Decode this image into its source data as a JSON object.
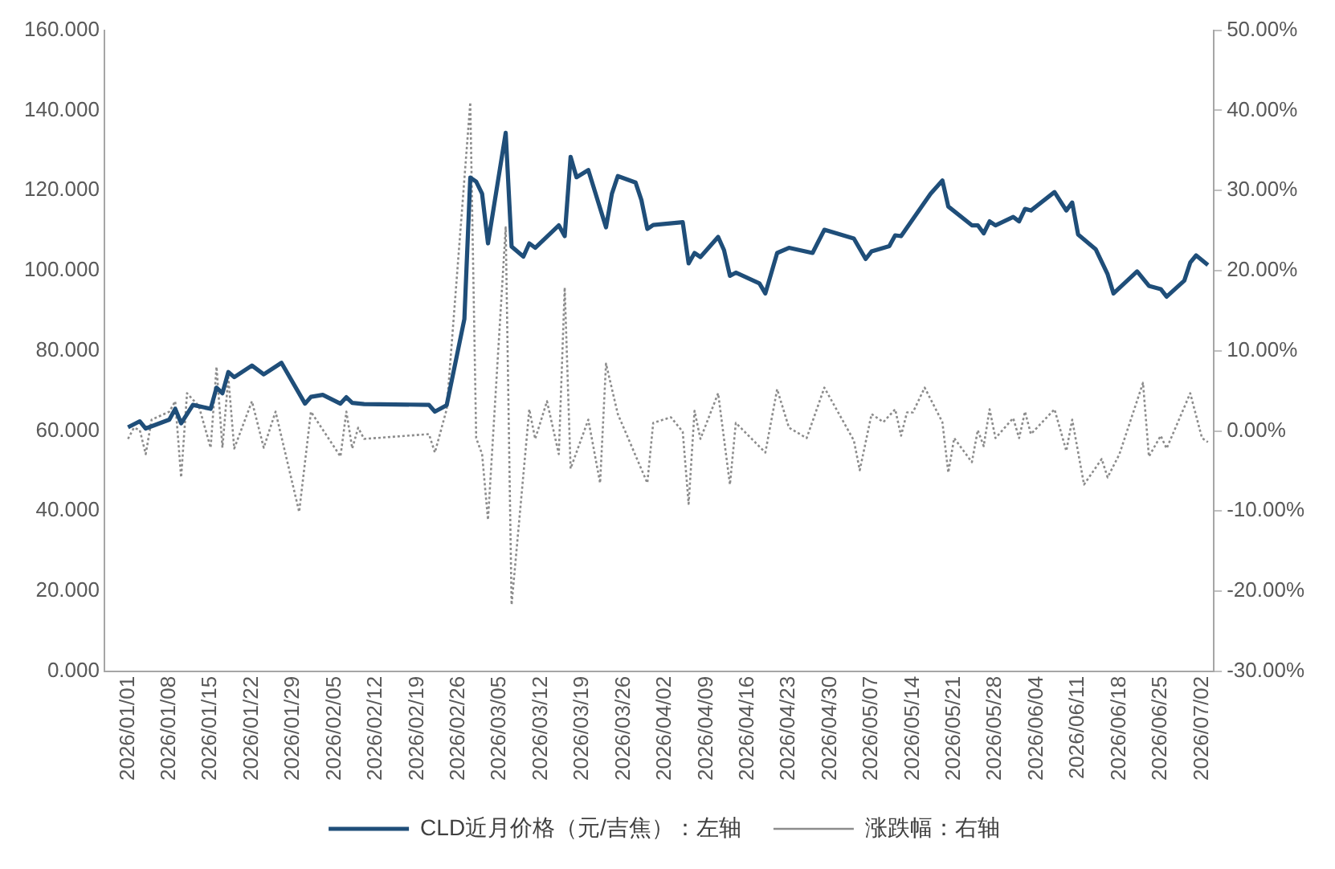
{
  "chart_data": {
    "type": "line",
    "xlim": [
      "2025-12-28",
      "2026-07-04"
    ],
    "xticks": [
      {
        "value": "2026-01-01",
        "label": "2026/01/01"
      },
      {
        "value": "2026-01-08",
        "label": "2026/01/08"
      },
      {
        "value": "2026-01-15",
        "label": "2026/01/15"
      },
      {
        "value": "2026-01-22",
        "label": "2026/01/22"
      },
      {
        "value": "2026-01-29",
        "label": "2026/01/29"
      },
      {
        "value": "2026-02-05",
        "label": "2026/02/05"
      },
      {
        "value": "2026-02-12",
        "label": "2026/02/12"
      },
      {
        "value": "2026-02-19",
        "label": "2026/02/19"
      },
      {
        "value": "2026-02-26",
        "label": "2026/02/26"
      },
      {
        "value": "2026-03-05",
        "label": "2026/03/05"
      },
      {
        "value": "2026-03-12",
        "label": "2026/03/12"
      },
      {
        "value": "2026-03-19",
        "label": "2026/03/19"
      },
      {
        "value": "2026-03-26",
        "label": "2026/03/26"
      },
      {
        "value": "2026-04-02",
        "label": "2026/04/02"
      },
      {
        "value": "2026-04-09",
        "label": "2026/04/09"
      },
      {
        "value": "2026-04-16",
        "label": "2026/04/16"
      },
      {
        "value": "2026-04-23",
        "label": "2026/04/23"
      },
      {
        "value": "2026-04-30",
        "label": "2026/04/30"
      },
      {
        "value": "2026-05-07",
        "label": "2026/05/07"
      },
      {
        "value": "2026-05-14",
        "label": "2026/05/14"
      },
      {
        "value": "2026-05-21",
        "label": "2026/05/21"
      },
      {
        "value": "2026-05-28",
        "label": "2026/05/28"
      },
      {
        "value": "2026-06-04",
        "label": "2026/06/04"
      },
      {
        "value": "2026-06-11",
        "label": "2026/06/11"
      },
      {
        "value": "2026-06-18",
        "label": "2026/06/18"
      },
      {
        "value": "2026-06-25",
        "label": "2026/06/25"
      },
      {
        "value": "2026-07-02",
        "label": "2026/07/02"
      }
    ],
    "ylim": [
      0,
      160
    ],
    "yticks": [
      {
        "value": 0,
        "label": "0.000"
      },
      {
        "value": 20,
        "label": "20.000"
      },
      {
        "value": 40,
        "label": "40.000"
      },
      {
        "value": 60,
        "label": "60.000"
      },
      {
        "value": 80,
        "label": "80.000"
      },
      {
        "value": 100,
        "label": "100.000"
      },
      {
        "value": 120,
        "label": "120.000"
      },
      {
        "value": 140,
        "label": "140.000"
      },
      {
        "value": 160,
        "label": "160.000"
      }
    ],
    "y2lim": [
      -30,
      50
    ],
    "y2ticks": [
      {
        "value": -30,
        "label": "-30.00%"
      },
      {
        "value": -20,
        "label": "-20.00%"
      },
      {
        "value": -10,
        "label": "-10.00%"
      },
      {
        "value": 0,
        "label": "0.00%"
      },
      {
        "value": 10,
        "label": "10.00%"
      },
      {
        "value": 20,
        "label": "20.00%"
      },
      {
        "value": 30,
        "label": "30.00%"
      },
      {
        "value": 40,
        "label": "40.00%"
      },
      {
        "value": 50,
        "label": "50.00%"
      }
    ],
    "legend": "bottom",
    "series": [
      {
        "name": "CLD近月价格（元/吉焦）：左轴",
        "color": "#1f4e79",
        "line_style": "solid",
        "axis": "y",
        "x": [
          "2026-01-01",
          "2026-01-03",
          "2026-01-04",
          "2026-01-08",
          "2026-01-09",
          "2026-01-10",
          "2026-01-12",
          "2026-01-15",
          "2026-01-16",
          "2026-01-17",
          "2026-01-18",
          "2026-01-19",
          "2026-01-22",
          "2026-01-24",
          "2026-01-27",
          "2026-01-31",
          "2026-02-01",
          "2026-02-03",
          "2026-02-06",
          "2026-02-07",
          "2026-02-08",
          "2026-02-10",
          "2026-02-21",
          "2026-02-22",
          "2026-02-24",
          "2026-02-27",
          "2026-02-28",
          "2026-03-01",
          "2026-03-02",
          "2026-03-03",
          "2026-03-06",
          "2026-03-07",
          "2026-03-09",
          "2026-03-10",
          "2026-03-11",
          "2026-03-15",
          "2026-03-16",
          "2026-03-17",
          "2026-03-18",
          "2026-03-20",
          "2026-03-23",
          "2026-03-24",
          "2026-03-25",
          "2026-03-28",
          "2026-03-29",
          "2026-03-30",
          "2026-03-31",
          "2026-04-05",
          "2026-04-06",
          "2026-04-07",
          "2026-04-08",
          "2026-04-11",
          "2026-04-12",
          "2026-04-13",
          "2026-04-14",
          "2026-04-18",
          "2026-04-19",
          "2026-04-21",
          "2026-04-23",
          "2026-04-27",
          "2026-04-29",
          "2026-05-04",
          "2026-05-06",
          "2026-05-07",
          "2026-05-10",
          "2026-05-11",
          "2026-05-12",
          "2026-05-17",
          "2026-05-19",
          "2026-05-20",
          "2026-05-24",
          "2026-05-25",
          "2026-05-26",
          "2026-05-27",
          "2026-05-28",
          "2026-05-31",
          "2026-06-01",
          "2026-06-02",
          "2026-06-03",
          "2026-06-07",
          "2026-06-09",
          "2026-06-10",
          "2026-06-11",
          "2026-06-14",
          "2026-06-16",
          "2026-06-17",
          "2026-06-21",
          "2026-06-23",
          "2026-06-25",
          "2026-06-26",
          "2026-06-29",
          "2026-06-30",
          "2026-07-01",
          "2026-07-03"
        ],
        "values": [
          60.9,
          62.4,
          60.6,
          62.8,
          65.5,
          61.9,
          66.5,
          65.5,
          70.8,
          69.4,
          74.7,
          73.4,
          76.3,
          74.1,
          77.0,
          66.8,
          68.5,
          69.0,
          66.8,
          68.4,
          67.0,
          66.7,
          66.5,
          64.8,
          66.4,
          87.9,
          123.2,
          122.2,
          119.2,
          106.8,
          134.4,
          106.0,
          103.5,
          106.8,
          105.7,
          111.3,
          108.6,
          128.4,
          123.3,
          125.1,
          110.8,
          119.2,
          123.6,
          122.0,
          117.6,
          110.4,
          111.4,
          112.1,
          101.8,
          104.4,
          103.4,
          108.4,
          105.1,
          98.7,
          99.5,
          96.8,
          94.3,
          104.4,
          105.7,
          104.4,
          110.2,
          108.0,
          102.9,
          104.8,
          106.1,
          108.8,
          108.6,
          119.2,
          122.5,
          116.0,
          111.3,
          111.3,
          109.3,
          112.3,
          111.3,
          113.4,
          112.3,
          115.4,
          115.0,
          119.6,
          115.0,
          117.0,
          109.0,
          105.3,
          99.1,
          94.3,
          99.8,
          96.2,
          95.4,
          93.5,
          97.5,
          102.0,
          103.8,
          101.4
        ]
      },
      {
        "name": "涨跌幅：右轴",
        "color": "#8c8c8c",
        "line_style": "dotted",
        "axis": "y2",
        "x": [
          "2026-01-01",
          "2026-01-02",
          "2026-01-03",
          "2026-01-04",
          "2026-01-05",
          "2026-01-08",
          "2026-01-09",
          "2026-01-10",
          "2026-01-11",
          "2026-01-13",
          "2026-01-15",
          "2026-01-16",
          "2026-01-17",
          "2026-01-18",
          "2026-01-19",
          "2026-01-22",
          "2026-01-24",
          "2026-01-26",
          "2026-01-30",
          "2026-02-01",
          "2026-02-06",
          "2026-02-07",
          "2026-02-08",
          "2026-02-09",
          "2026-02-10",
          "2026-02-21",
          "2026-02-22",
          "2026-02-24",
          "2026-02-28",
          "2026-03-01",
          "2026-03-02",
          "2026-03-03",
          "2026-03-06",
          "2026-03-07",
          "2026-03-10",
          "2026-03-11",
          "2026-03-13",
          "2026-03-15",
          "2026-03-16",
          "2026-03-17",
          "2026-03-20",
          "2026-03-22",
          "2026-03-23",
          "2026-03-25",
          "2026-03-30",
          "2026-03-31",
          "2026-04-03",
          "2026-04-05",
          "2026-04-06",
          "2026-04-07",
          "2026-04-08",
          "2026-04-11",
          "2026-04-13",
          "2026-04-14",
          "2026-04-19",
          "2026-04-21",
          "2026-04-23",
          "2026-04-26",
          "2026-04-29",
          "2026-05-04",
          "2026-05-05",
          "2026-05-07",
          "2026-05-09",
          "2026-05-11",
          "2026-05-12",
          "2026-05-13",
          "2026-05-14",
          "2026-05-16",
          "2026-05-19",
          "2026-05-20",
          "2026-05-21",
          "2026-05-24",
          "2026-05-25",
          "2026-05-26",
          "2026-05-27",
          "2026-05-28",
          "2026-05-31",
          "2026-06-01",
          "2026-06-02",
          "2026-06-03",
          "2026-06-07",
          "2026-06-09",
          "2026-06-10",
          "2026-06-12",
          "2026-06-15",
          "2026-06-16",
          "2026-06-18",
          "2026-06-22",
          "2026-06-23",
          "2026-06-25",
          "2026-06-26",
          "2026-06-30",
          "2026-07-02",
          "2026-07-03"
        ],
        "values": [
          -1.0,
          0.4,
          0.1,
          -2.9,
          1.4,
          2.4,
          3.7,
          -5.8,
          4.7,
          3.1,
          -2.1,
          8.0,
          -2.1,
          6.7,
          -2.2,
          3.7,
          -2.1,
          2.4,
          -10.1,
          2.4,
          -3.2,
          2.4,
          -2.2,
          0.4,
          -1.0,
          -0.4,
          -2.7,
          2.7,
          41.0,
          -0.9,
          -2.9,
          -11.1,
          25.4,
          -21.7,
          2.7,
          -1.0,
          3.7,
          -2.9,
          17.9,
          -4.7,
          1.4,
          -6.5,
          8.4,
          2.1,
          -6.5,
          1.0,
          1.7,
          -0.1,
          -9.1,
          2.5,
          -1.0,
          4.7,
          -6.7,
          1.0,
          -2.7,
          5.2,
          0.4,
          -0.9,
          5.4,
          -1.2,
          -4.9,
          2.1,
          1.1,
          2.7,
          -0.6,
          2.3,
          2.3,
          5.4,
          1.1,
          -5.2,
          -0.9,
          -3.9,
          0.1,
          -1.9,
          2.7,
          -0.9,
          1.6,
          -0.9,
          2.4,
          -0.4,
          2.7,
          -2.5,
          1.4,
          -6.7,
          -3.5,
          -5.8,
          -2.9,
          6.0,
          -3.2,
          -0.6,
          -2.2,
          4.7,
          -0.9,
          -1.4
        ]
      }
    ]
  }
}
